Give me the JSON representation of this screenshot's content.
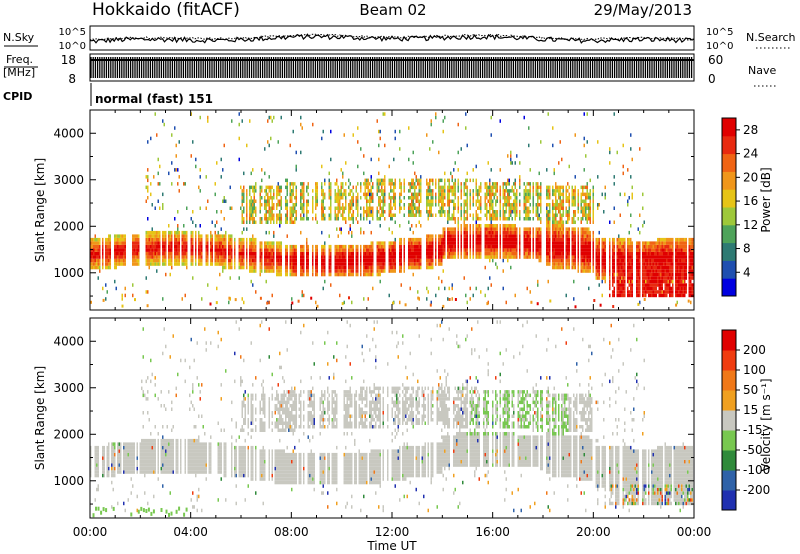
{
  "header": {
    "station": "Hokkaido (fitACF)",
    "beam": "Beam 02",
    "date": "29/May/2013"
  },
  "noise_panel": {
    "left_label": "N.Sky",
    "right_label": "N.Search",
    "left_ticks": [
      "10^5",
      "10^0"
    ],
    "right_ticks": [
      "10^5",
      "10^0"
    ]
  },
  "freq_panel": {
    "left_label_1": "Freq.",
    "left_label_2": "[MHz]",
    "right_label": "Nave",
    "left_ticks": [
      "18",
      "8"
    ],
    "right_ticks": [
      "60",
      "0"
    ]
  },
  "cpid": {
    "label": "CPID",
    "value": "normal (fast) 151"
  },
  "chart_data": [
    {
      "type": "heatmap",
      "name": "power",
      "ylabel": "Slant Range [km]",
      "yticks": [
        "1000",
        "2000",
        "3000",
        "4000"
      ],
      "ylim": [
        200,
        4500
      ],
      "xticks": [
        "00:00",
        "04:00",
        "08:00",
        "12:00",
        "16:00",
        "20:00",
        "00:00"
      ],
      "xlim": [
        0,
        24
      ],
      "colorbar": {
        "label": "Power [dB]",
        "ticks": [
          "4",
          "8",
          "12",
          "16",
          "20",
          "24",
          "28"
        ],
        "range": [
          0,
          30
        ],
        "colors": [
          "#0000e0",
          "#1f4fb0",
          "#2e7a73",
          "#4ea35a",
          "#9ec83a",
          "#e6c417",
          "#f0961a",
          "#f06414",
          "#e82a10",
          "#e00000"
        ]
      },
      "features": [
        {
          "desc": "main band",
          "time_range": [
            0,
            24
          ],
          "range_km": [
            1100,
            1800
          ],
          "power_db": [
            16,
            30
          ]
        },
        {
          "desc": "upper band",
          "time_range": [
            8,
            20
          ],
          "range_km": [
            2000,
            2900
          ],
          "power_db": [
            10,
            24
          ]
        },
        {
          "desc": "near range",
          "time_range": [
            21,
            24
          ],
          "range_km": [
            400,
            1300
          ],
          "power_db": [
            26,
            30
          ]
        }
      ]
    },
    {
      "type": "heatmap",
      "name": "velocity",
      "ylabel": "Slant Range [km]",
      "yticks": [
        "1000",
        "2000",
        "3000",
        "4000"
      ],
      "ylim": [
        200,
        4500
      ],
      "xticks": [
        "00:00",
        "04:00",
        "08:00",
        "12:00",
        "16:00",
        "20:00",
        "00:00"
      ],
      "xlim": [
        0,
        24
      ],
      "xlabel": "Time UT",
      "colorbar": {
        "label": "Velocity [m s⁻¹]",
        "ticks": [
          "200",
          "100",
          "50",
          "15",
          "-15",
          "-50",
          "-100",
          "-200"
        ],
        "colors": [
          "#2030b0",
          "#2f62a8",
          "#2f8a3a",
          "#78c850",
          "#c8c8c0",
          "#f0a020",
          "#f07818",
          "#f03c10",
          "#e00000"
        ]
      }
    }
  ],
  "colors": {
    "ground_scatter": "#c8c8c0"
  }
}
